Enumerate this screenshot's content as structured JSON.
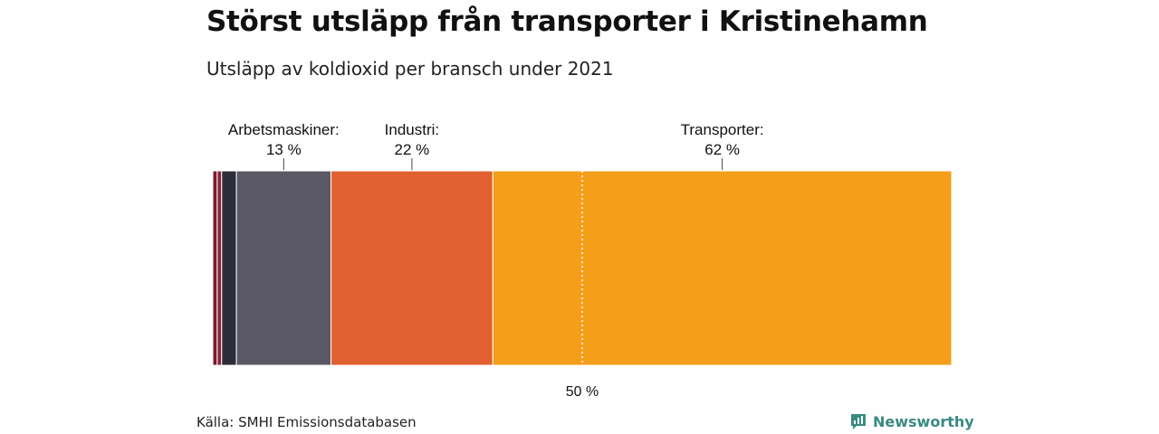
{
  "title": "Störst utsläpp från transporter i Kristinehamn",
  "subtitle": "Utsläpp av koldioxid per bransch under 2021",
  "source": "Källa: SMHI Emissionsdatabasen",
  "brand": {
    "name": "Newsworthy",
    "icon": "newsworthy-logo-icon",
    "color": "#3a8a82"
  },
  "chart_data": {
    "type": "bar",
    "orientation": "stacked-horizontal",
    "unit": "%",
    "xlim": [
      0,
      100
    ],
    "reference_line": {
      "value": 50,
      "label": "50 %"
    },
    "segments": [
      {
        "name": "",
        "value": 0.6,
        "color": "#7a1a2e"
      },
      {
        "name": "",
        "value": 0.6,
        "color": "#8a2238"
      },
      {
        "name": "",
        "value": 2.0,
        "color": "#2d2d3a"
      },
      {
        "name": "Arbetsmaskiner:",
        "value_label": "13 %",
        "value": 12.8,
        "color": "#5a5865"
      },
      {
        "name": "Industri:",
        "value_label": "22 %",
        "value": 21.9,
        "color": "#e0602f"
      },
      {
        "name": "Transporter:",
        "value_label": "62 %",
        "value": 62.1,
        "color": "#f59e1a"
      }
    ]
  }
}
